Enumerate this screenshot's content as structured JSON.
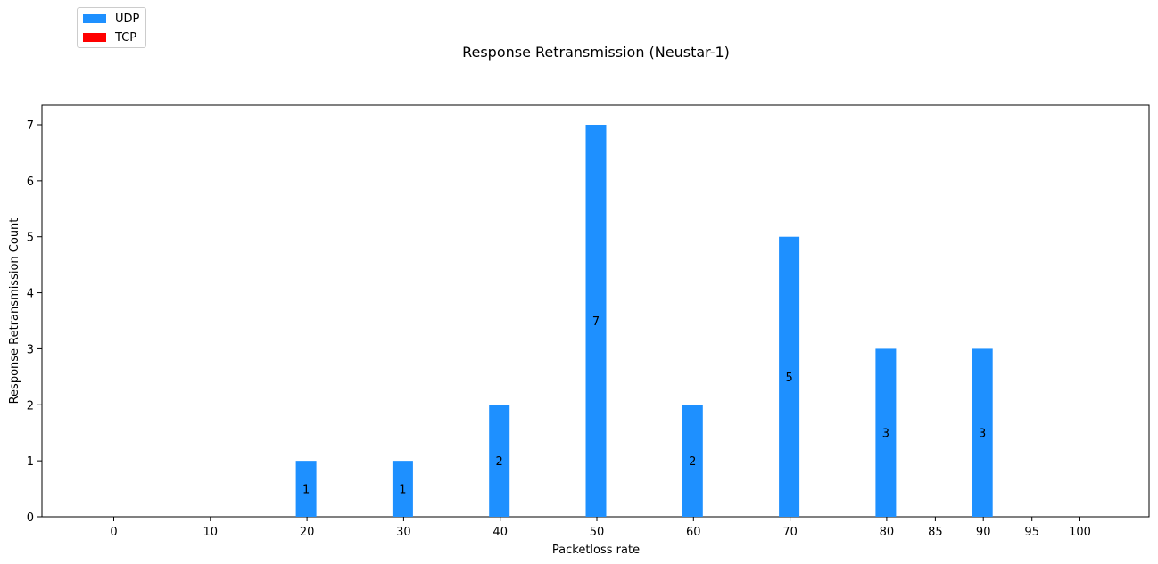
{
  "chart_data": {
    "type": "bar",
    "title": "Response Retransmission (Neustar-1)",
    "xlabel": "Packetloss rate",
    "ylabel": "Response Retransmission Count",
    "categories": [
      "0",
      "10",
      "20",
      "30",
      "40",
      "50",
      "60",
      "70",
      "80",
      "85",
      "90",
      "95",
      "100"
    ],
    "series": [
      {
        "name": "UDP",
        "color": "#1e90ff",
        "values": [
          0,
          0,
          1,
          1,
          2,
          7,
          2,
          5,
          3,
          0,
          3,
          0,
          0
        ]
      },
      {
        "name": "TCP",
        "color": "#ff0000",
        "values": [
          0,
          0,
          0,
          0,
          0,
          0,
          0,
          0,
          0,
          0,
          0,
          0,
          0
        ]
      }
    ],
    "ylim": [
      0,
      7.35
    ],
    "yticks": [
      0,
      1,
      2,
      3,
      4,
      5,
      6,
      7
    ],
    "grid": false,
    "legend_position": "top-left"
  }
}
